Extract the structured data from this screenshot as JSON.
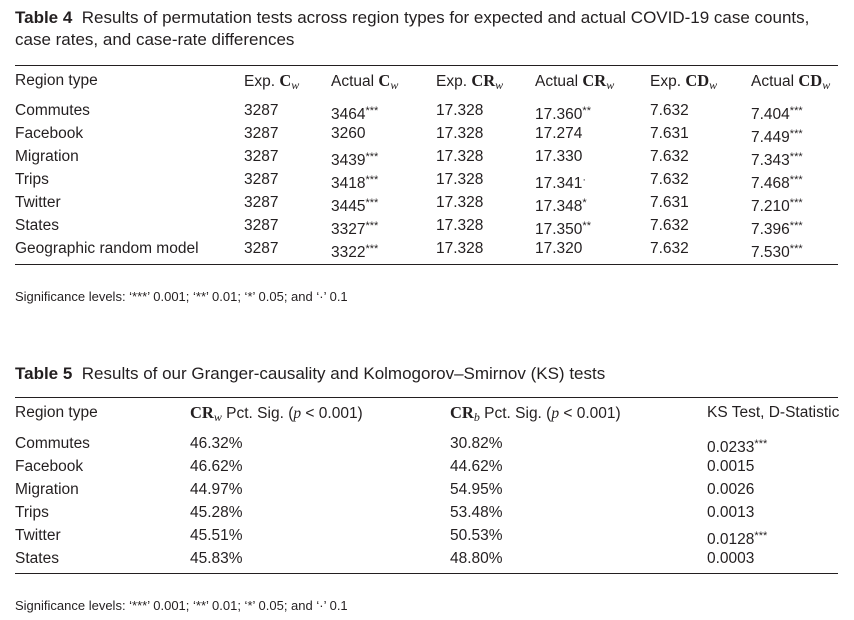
{
  "table4": {
    "label": "Table 4",
    "caption": "Results of permutation tests across region types for expected and actual COVID-19 case counts, case rates, and case-rate differences",
    "headers": [
      {
        "pre": "Region type",
        "b": "",
        "sub": ""
      },
      {
        "pre": "Exp. ",
        "b": "C",
        "sub": "w"
      },
      {
        "pre": "Actual ",
        "b": "C",
        "sub": "w"
      },
      {
        "pre": "Exp. ",
        "b": "CR",
        "sub": "w"
      },
      {
        "pre": "Actual ",
        "b": "CR",
        "sub": "w"
      },
      {
        "pre": "Exp. ",
        "b": "CD",
        "sub": "w"
      },
      {
        "pre": "Actual ",
        "b": "CD",
        "sub": "w"
      }
    ],
    "rows": [
      [
        {
          "v": "Commutes"
        },
        {
          "v": "3287"
        },
        {
          "v": "3464",
          "s": "***"
        },
        {
          "v": "17.328"
        },
        {
          "v": "17.360",
          "s": "**"
        },
        {
          "v": "7.632"
        },
        {
          "v": "7.404",
          "s": "***"
        }
      ],
      [
        {
          "v": "Facebook"
        },
        {
          "v": "3287"
        },
        {
          "v": "3260"
        },
        {
          "v": "17.328"
        },
        {
          "v": "17.274"
        },
        {
          "v": "7.631"
        },
        {
          "v": "7.449",
          "s": "***"
        }
      ],
      [
        {
          "v": "Migration"
        },
        {
          "v": "3287"
        },
        {
          "v": "3439",
          "s": "***"
        },
        {
          "v": "17.328"
        },
        {
          "v": "17.330"
        },
        {
          "v": "7.632"
        },
        {
          "v": "7.343",
          "s": "***"
        }
      ],
      [
        {
          "v": "Trips"
        },
        {
          "v": "3287"
        },
        {
          "v": "3418",
          "s": "***"
        },
        {
          "v": "17.328"
        },
        {
          "v": "17.341",
          "s": "·"
        },
        {
          "v": "7.632"
        },
        {
          "v": "7.468",
          "s": "***"
        }
      ],
      [
        {
          "v": "Twitter"
        },
        {
          "v": "3287"
        },
        {
          "v": "3445",
          "s": "***"
        },
        {
          "v": "17.328"
        },
        {
          "v": "17.348",
          "s": "*"
        },
        {
          "v": "7.631"
        },
        {
          "v": "7.210",
          "s": "***"
        }
      ],
      [
        {
          "v": "States"
        },
        {
          "v": "3287"
        },
        {
          "v": "3327",
          "s": "***"
        },
        {
          "v": "17.328"
        },
        {
          "v": "17.350",
          "s": "**"
        },
        {
          "v": "7.632"
        },
        {
          "v": "7.396",
          "s": "***"
        }
      ],
      [
        {
          "v": "Geographic random model"
        },
        {
          "v": "3287"
        },
        {
          "v": "3322",
          "s": "***"
        },
        {
          "v": "17.328"
        },
        {
          "v": "17.320"
        },
        {
          "v": "7.632"
        },
        {
          "v": "7.530",
          "s": "***"
        }
      ]
    ],
    "footnote": "Significance levels: ‘***’ 0.001; ‘**’ 0.01; ‘*’ 0.05; and ‘·’ 0.1"
  },
  "table5": {
    "label": "Table 5",
    "caption": "Results of our Granger-causality and Kolmogorov–Smirnov (KS) tests",
    "headers": [
      {
        "pre": "Region type",
        "b": "",
        "sub": "",
        "post": ""
      },
      {
        "pre": "",
        "b": "CR",
        "sub": "w",
        "post": " Pct. Sig. (",
        "i": "p",
        "post2": " < 0.001)"
      },
      {
        "pre": "",
        "b": "CR",
        "sub": "b",
        "post": " Pct. Sig. (",
        "i": "p",
        "post2": " < 0.001)"
      },
      {
        "pre": "KS Test, D-Statistic",
        "b": "",
        "sub": "",
        "post": ""
      }
    ],
    "rows": [
      [
        {
          "v": "Commutes"
        },
        {
          "v": "46.32%"
        },
        {
          "v": "30.82%"
        },
        {
          "v": "0.0233",
          "s": "***"
        }
      ],
      [
        {
          "v": "Facebook"
        },
        {
          "v": "46.62%"
        },
        {
          "v": "44.62%"
        },
        {
          "v": "0.0015"
        }
      ],
      [
        {
          "v": "Migration"
        },
        {
          "v": "44.97%"
        },
        {
          "v": "54.95%"
        },
        {
          "v": "0.0026"
        }
      ],
      [
        {
          "v": "Trips"
        },
        {
          "v": "45.28%"
        },
        {
          "v": "53.48%"
        },
        {
          "v": "0.0013"
        }
      ],
      [
        {
          "v": "Twitter"
        },
        {
          "v": "45.51%"
        },
        {
          "v": "50.53%"
        },
        {
          "v": "0.0128",
          "s": "***"
        }
      ],
      [
        {
          "v": "States"
        },
        {
          "v": "45.83%"
        },
        {
          "v": "48.80%"
        },
        {
          "v": "0.0003"
        }
      ]
    ],
    "footnote": "Significance levels: ‘***’ 0.001; ‘**’ 0.01; ‘*’ 0.05; and ‘·’ 0.1"
  }
}
